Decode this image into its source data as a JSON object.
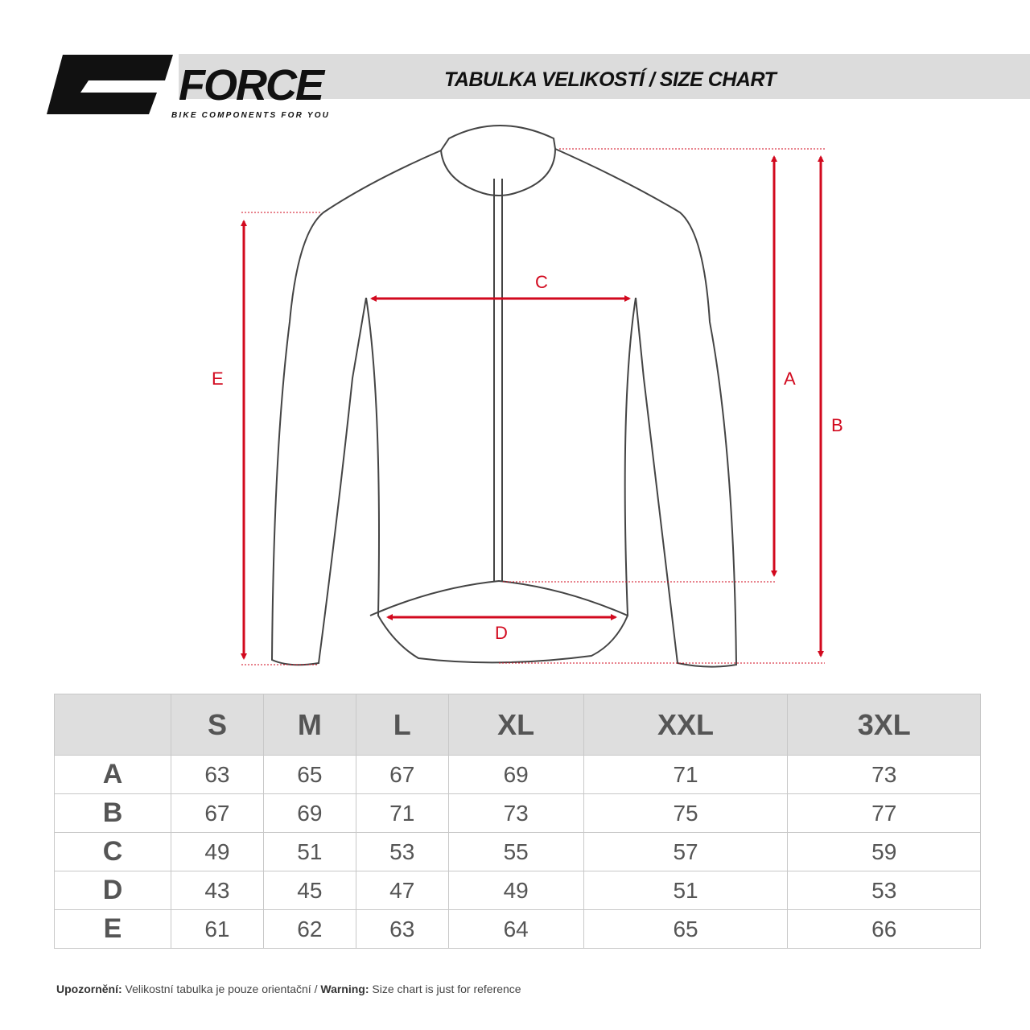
{
  "header": {
    "brand": "FORCE",
    "tagline": "BIKE COMPONENTS FOR YOU",
    "title": "TABULKA VELIKOSTÍ / SIZE CHART"
  },
  "diagram": {
    "labels": {
      "A": "A",
      "B": "B",
      "C": "C",
      "D": "D",
      "E": "E"
    },
    "accent_color": "#d2091e",
    "outline_color": "#444444"
  },
  "table": {
    "columns": [
      "S",
      "M",
      "L",
      "XL",
      "XXL",
      "3XL"
    ],
    "rows": [
      {
        "label": "A",
        "values": [
          "63",
          "65",
          "67",
          "69",
          "71",
          "73"
        ]
      },
      {
        "label": "B",
        "values": [
          "67",
          "69",
          "71",
          "73",
          "75",
          "77"
        ]
      },
      {
        "label": "C",
        "values": [
          "49",
          "51",
          "53",
          "55",
          "57",
          "59"
        ]
      },
      {
        "label": "D",
        "values": [
          "43",
          "45",
          "47",
          "49",
          "51",
          "53"
        ]
      },
      {
        "label": "E",
        "values": [
          "61",
          "62",
          "63",
          "64",
          "65",
          "66"
        ]
      }
    ]
  },
  "footer": {
    "warning_cz_label": "Upozornění:",
    "warning_cz_text": " Velikostní tabulka je pouze orientační / ",
    "warning_en_label": "Warning:",
    "warning_en_text": " Size chart is just for reference"
  }
}
